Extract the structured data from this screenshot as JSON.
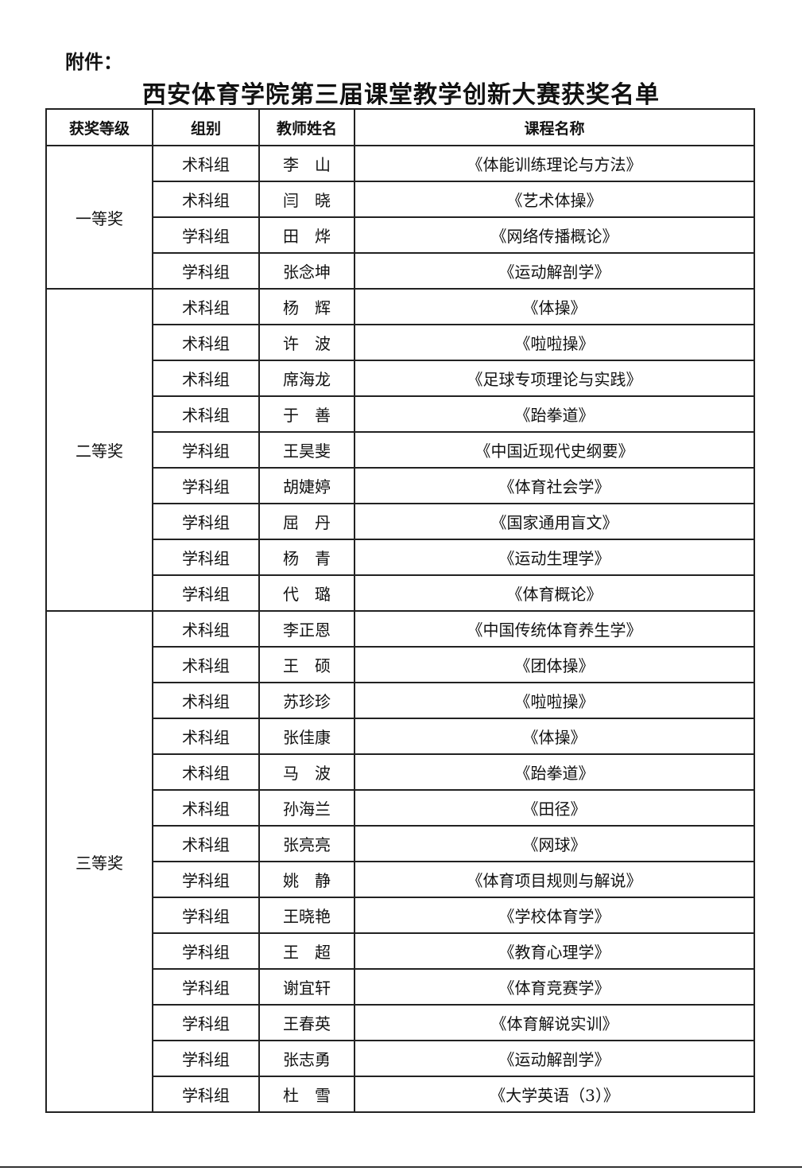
{
  "attachment_label": "附件：",
  "title": "西安体育学院第三届课堂教学创新大赛获奖名单",
  "headers": [
    "获奖等级",
    "组别",
    "教师姓名",
    "课程名称"
  ],
  "groups": [
    {
      "level": "一等奖",
      "rows": [
        {
          "group": "术科组",
          "teacher": "李　山",
          "course": "《体能训练理论与方法》"
        },
        {
          "group": "术科组",
          "teacher": "闫　晓",
          "course": "《艺术体操》"
        },
        {
          "group": "学科组",
          "teacher": "田　烨",
          "course": "《网络传播概论》"
        },
        {
          "group": "学科组",
          "teacher": "张念坤",
          "course": "《运动解剖学》"
        }
      ]
    },
    {
      "level": "二等奖",
      "rows": [
        {
          "group": "术科组",
          "teacher": "杨　辉",
          "course": "《体操》"
        },
        {
          "group": "术科组",
          "teacher": "许　波",
          "course": "《啦啦操》"
        },
        {
          "group": "术科组",
          "teacher": "席海龙",
          "course": "《足球专项理论与实践》"
        },
        {
          "group": "术科组",
          "teacher": "于　善",
          "course": "《跆拳道》"
        },
        {
          "group": "学科组",
          "teacher": "王昊斐",
          "course": "《中国近现代史纲要》"
        },
        {
          "group": "学科组",
          "teacher": "胡婕婷",
          "course": "《体育社会学》"
        },
        {
          "group": "学科组",
          "teacher": "屈　丹",
          "course": "《国家通用盲文》"
        },
        {
          "group": "学科组",
          "teacher": "杨　青",
          "course": "《运动生理学》"
        },
        {
          "group": "学科组",
          "teacher": "代　璐",
          "course": "《体育概论》"
        }
      ]
    },
    {
      "level": "三等奖",
      "rows": [
        {
          "group": "术科组",
          "teacher": "李正恩",
          "course": "《中国传统体育养生学》"
        },
        {
          "group": "术科组",
          "teacher": "王　硕",
          "course": "《团体操》"
        },
        {
          "group": "术科组",
          "teacher": "苏珍珍",
          "course": "《啦啦操》"
        },
        {
          "group": "术科组",
          "teacher": "张佳康",
          "course": "《体操》"
        },
        {
          "group": "术科组",
          "teacher": "马　波",
          "course": "《跆拳道》"
        },
        {
          "group": "术科组",
          "teacher": "孙海兰",
          "course": "《田径》"
        },
        {
          "group": "术科组",
          "teacher": "张亮亮",
          "course": "《网球》"
        },
        {
          "group": "学科组",
          "teacher": "姚　静",
          "course": "《体育项目规则与解说》"
        },
        {
          "group": "学科组",
          "teacher": "王晓艳",
          "course": "《学校体育学》"
        },
        {
          "group": "学科组",
          "teacher": "王　超",
          "course": "《教育心理学》"
        },
        {
          "group": "学科组",
          "teacher": "谢宜轩",
          "course": "《体育竞赛学》"
        },
        {
          "group": "学科组",
          "teacher": "王春英",
          "course": "《体育解说实训》"
        },
        {
          "group": "学科组",
          "teacher": "张志勇",
          "course": "《运动解剖学》"
        },
        {
          "group": "学科组",
          "teacher": "杜　雪",
          "course": "《大学英语（3）》"
        }
      ]
    }
  ]
}
